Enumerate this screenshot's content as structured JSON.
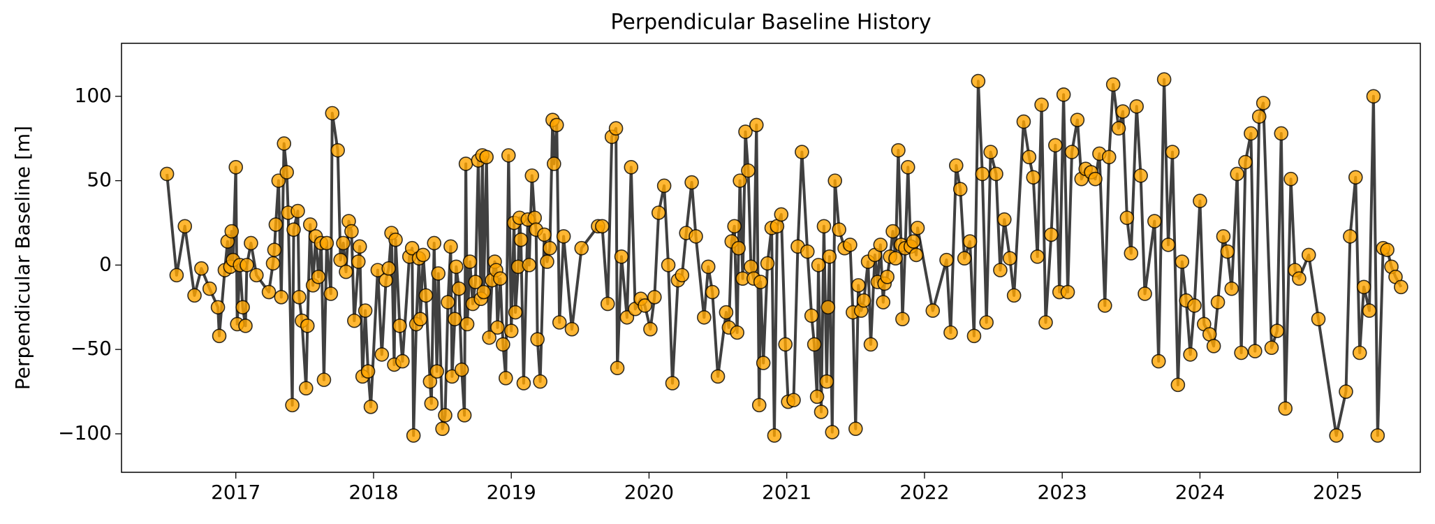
{
  "chart_data": {
    "type": "line",
    "title": "Perpendicular Baseline History",
    "y_label": "Perpendicular Baseline [m]",
    "x": [
      2016.5,
      2016.57,
      2016.63,
      2016.7,
      2016.75,
      2016.81,
      2016.87,
      2016.88,
      2016.92,
      2016.94,
      2016.96,
      2016.97,
      2016.98,
      2017.0,
      2017.01,
      2017.03,
      2017.05,
      2017.07,
      2017.08,
      2017.11,
      2017.15,
      2017.24,
      2017.27,
      2017.28,
      2017.29,
      2017.31,
      2017.33,
      2017.35,
      2017.37,
      2017.38,
      2017.41,
      2017.42,
      2017.45,
      2017.46,
      2017.48,
      2017.51,
      2017.52,
      2017.54,
      2017.56,
      2017.58,
      2017.6,
      2017.62,
      2017.64,
      2017.66,
      2017.69,
      2017.7,
      2017.74,
      2017.76,
      2017.78,
      2017.8,
      2017.82,
      2017.84,
      2017.86,
      2017.89,
      2017.9,
      2017.92,
      2017.94,
      2017.96,
      2017.98,
      2018.03,
      2018.06,
      2018.09,
      2018.11,
      2018.13,
      2018.15,
      2018.16,
      2018.19,
      2018.21,
      2018.26,
      2018.28,
      2018.29,
      2018.31,
      2018.33,
      2018.34,
      2018.36,
      2018.38,
      2018.41,
      2018.42,
      2018.44,
      2018.46,
      2018.47,
      2018.5,
      2018.52,
      2018.54,
      2018.56,
      2018.57,
      2018.59,
      2018.6,
      2018.62,
      2018.64,
      2018.66,
      2018.67,
      2018.68,
      2018.7,
      2018.72,
      2018.74,
      2018.76,
      2018.78,
      2018.79,
      2018.8,
      2018.82,
      2018.84,
      2018.86,
      2018.88,
      2018.89,
      2018.9,
      2018.92,
      2018.94,
      2018.96,
      2018.98,
      2019.0,
      2019.02,
      2019.03,
      2019.05,
      2019.06,
      2019.07,
      2019.09,
      2019.12,
      2019.13,
      2019.15,
      2019.17,
      2019.18,
      2019.19,
      2019.21,
      2019.24,
      2019.26,
      2019.28,
      2019.3,
      2019.31,
      2019.33,
      2019.35,
      2019.38,
      2019.44,
      2019.51,
      2019.63,
      2019.66,
      2019.7,
      2019.73,
      2019.76,
      2019.77,
      2019.8,
      2019.84,
      2019.87,
      2019.9,
      2019.94,
      2019.97,
      2020.01,
      2020.04,
      2020.07,
      2020.11,
      2020.14,
      2020.17,
      2020.21,
      2020.24,
      2020.27,
      2020.31,
      2020.34,
      2020.4,
      2020.43,
      2020.46,
      2020.5,
      2020.56,
      2020.58,
      2020.6,
      2020.62,
      2020.64,
      2020.65,
      2020.66,
      2020.68,
      2020.7,
      2020.72,
      2020.74,
      2020.76,
      2020.78,
      2020.8,
      2020.81,
      2020.83,
      2020.86,
      2020.89,
      2020.91,
      2020.93,
      2020.96,
      2020.99,
      2021.01,
      2021.05,
      2021.08,
      2021.11,
      2021.15,
      2021.18,
      2021.2,
      2021.22,
      2021.23,
      2021.25,
      2021.27,
      2021.29,
      2021.3,
      2021.31,
      2021.33,
      2021.35,
      2021.38,
      2021.42,
      2021.46,
      2021.48,
      2021.5,
      2021.52,
      2021.54,
      2021.56,
      2021.59,
      2021.61,
      2021.64,
      2021.66,
      2021.68,
      2021.7,
      2021.71,
      2021.73,
      2021.75,
      2021.77,
      2021.79,
      2021.81,
      2021.83,
      2021.84,
      2021.86,
      2021.88,
      2021.9,
      2021.92,
      2021.94,
      2021.95,
      2022.06,
      2022.16,
      2022.19,
      2022.23,
      2022.26,
      2022.29,
      2022.33,
      2022.36,
      2022.39,
      2022.42,
      2022.45,
      2022.48,
      2022.52,
      2022.55,
      2022.58,
      2022.62,
      2022.65,
      2022.72,
      2022.76,
      2022.79,
      2022.82,
      2022.85,
      2022.88,
      2022.92,
      2022.95,
      2022.98,
      2023.01,
      2023.04,
      2023.07,
      2023.11,
      2023.14,
      2023.17,
      2023.21,
      2023.24,
      2023.27,
      2023.31,
      2023.34,
      2023.37,
      2023.41,
      2023.44,
      2023.47,
      2023.5,
      2023.54,
      2023.57,
      2023.6,
      2023.67,
      2023.7,
      2023.74,
      2023.77,
      2023.8,
      2023.84,
      2023.87,
      2023.9,
      2023.93,
      2023.96,
      2024.0,
      2024.03,
      2024.07,
      2024.1,
      2024.13,
      2024.17,
      2024.2,
      2024.23,
      2024.27,
      2024.3,
      2024.33,
      2024.37,
      2024.4,
      2024.43,
      2024.46,
      2024.52,
      2024.56,
      2024.59,
      2024.62,
      2024.66,
      2024.69,
      2024.72,
      2024.79,
      2024.86,
      2024.99,
      2025.06,
      2025.09,
      2025.13,
      2025.16,
      2025.19,
      2025.23,
      2025.26,
      2025.29,
      2025.33,
      2025.36,
      2025.39,
      2025.42,
      2025.46
    ],
    "values": [
      54,
      -6,
      23,
      -18,
      -2,
      -14,
      -25,
      -42,
      -3,
      14,
      -1,
      20,
      3,
      58,
      -35,
      0,
      -25,
      -36,
      0,
      13,
      -6,
      -16,
      1,
      9,
      24,
      50,
      -19,
      72,
      55,
      31,
      -83,
      21,
      32,
      -19,
      -33,
      -73,
      -36,
      24,
      -12,
      17,
      -7,
      13,
      -68,
      13,
      -17,
      90,
      68,
      3,
      13,
      -4,
      26,
      20,
      -33,
      2,
      11,
      -66,
      -27,
      -63,
      -84,
      -3,
      -53,
      -9,
      -2,
      19,
      -59,
      15,
      -36,
      -57,
      5,
      10,
      -101,
      -35,
      4,
      -32,
      6,
      -18,
      -69,
      -82,
      13,
      -63,
      -5,
      -97,
      -89,
      -22,
      11,
      -66,
      -32,
      -1,
      -14,
      -62,
      -89,
      60,
      -35,
      2,
      -23,
      -10,
      62,
      -20,
      65,
      -16,
      64,
      -43,
      -9,
      2,
      -3,
      -37,
      -8,
      -47,
      -67,
      65,
      -39,
      25,
      -28,
      -1,
      28,
      15,
      -70,
      27,
      0,
      53,
      28,
      21,
      -44,
      -69,
      18,
      2,
      10,
      86,
      60,
      83,
      -34,
      17,
      -38,
      10,
      23,
      23,
      -23,
      76,
      81,
      -61,
      5,
      -31,
      58,
      -26,
      -20,
      -24,
      -38,
      -19,
      31,
      47,
      0,
      -70,
      -9,
      -6,
      19,
      49,
      17,
      -31,
      -1,
      -16,
      -66,
      -28,
      -37,
      14,
      23,
      -40,
      10,
      50,
      -8,
      79,
      56,
      -1,
      -8,
      83,
      -83,
      -10,
      -58,
      1,
      22,
      -101,
      23,
      30,
      -47,
      -81,
      -80,
      11,
      67,
      8,
      -30,
      -47,
      -78,
      0,
      -87,
      23,
      -69,
      -25,
      5,
      -99,
      50,
      21,
      10,
      12,
      -28,
      -97,
      -12,
      -27,
      -21,
      2,
      -47,
      6,
      -10,
      12,
      -22,
      -11,
      -7,
      5,
      20,
      4,
      68,
      12,
      -32,
      10,
      58,
      11,
      14,
      6,
      22,
      -27,
      3,
      -40,
      59,
      45,
      4,
      14,
      -42,
      109,
      54,
      -34,
      67,
      54,
      -3,
      27,
      4,
      -18,
      85,
      64,
      52,
      5,
      95,
      -34,
      18,
      71,
      -16,
      101,
      -16,
      67,
      86,
      51,
      57,
      55,
      51,
      66,
      -24,
      64,
      107,
      81,
      91,
      28,
      7,
      94,
      53,
      -17,
      26,
      -57,
      110,
      12,
      67,
      -71,
      2,
      -21,
      -53,
      -24,
      38,
      -35,
      -41,
      -48,
      -22,
      17,
      8,
      -14,
      54,
      -52,
      61,
      78,
      -51,
      88,
      96,
      -49,
      -39,
      78,
      -85,
      51,
      -3,
      -8,
      6,
      -32,
      -101,
      -75,
      17,
      52,
      -52,
      -13,
      -27,
      100,
      -101,
      10,
      9,
      -1,
      -7,
      -13
    ],
    "color": "#ffa500",
    "line_color": "#404040",
    "xlim": [
      2016.17,
      2025.6
    ],
    "xticks": [
      2017,
      2018,
      2019,
      2020,
      2021,
      2022,
      2023,
      2024,
      2025
    ],
    "ylim": [
      -122.8,
      131.4
    ],
    "yticks": [
      {
        "value": -100,
        "label": "−100"
      },
      {
        "value": -50,
        "label": "−50"
      },
      0,
      50,
      100
    ]
  }
}
